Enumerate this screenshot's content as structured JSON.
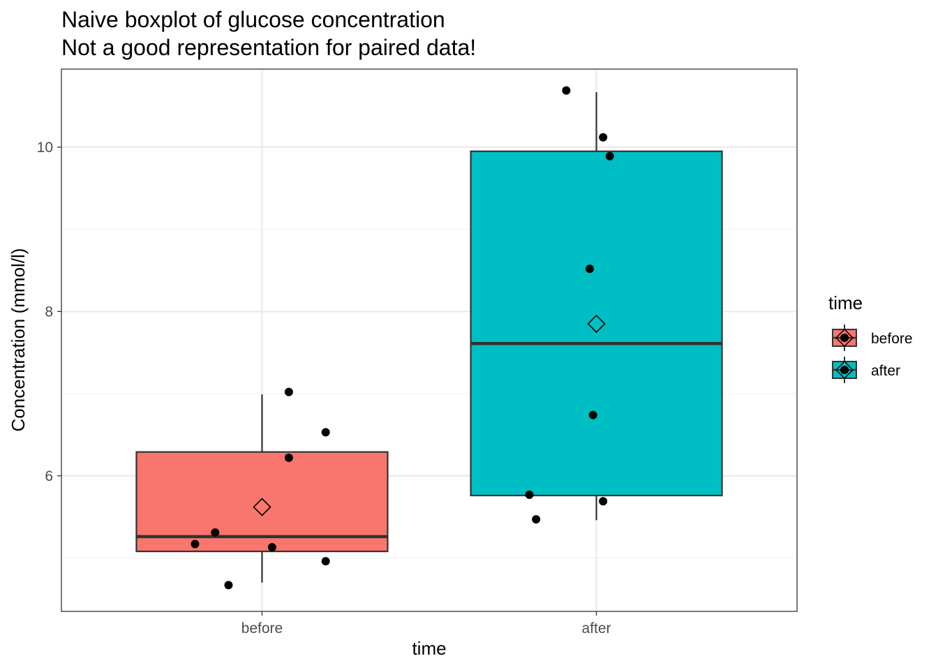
{
  "title_lines": [
    "Naive boxplot of glucose concentration",
    "Not a good representation for paired data!"
  ],
  "chart_data": {
    "type": "boxplot",
    "title": "Naive boxplot of glucose concentration\nNot a good representation for paired data!",
    "xlabel": "time",
    "ylabel": "Concentration (mmol/l)",
    "categories": [
      "before",
      "after"
    ],
    "yticks": [
      6,
      8,
      10
    ],
    "ylim": [
      4.35,
      10.95
    ],
    "grid": true,
    "legend": {
      "title": "time",
      "position": "right",
      "entries": [
        {
          "label": "before",
          "color": "#F8766D"
        },
        {
          "label": "after",
          "color": "#00BFC4"
        }
      ]
    },
    "boxes": [
      {
        "name": "before",
        "color": "#F8766D",
        "whisker_low": 4.7,
        "q1": 5.08,
        "median": 5.26,
        "q3": 6.29,
        "whisker_high": 6.99,
        "mean": 5.62
      },
      {
        "name": "after",
        "color": "#00BFC4",
        "whisker_low": 5.46,
        "q1": 5.76,
        "median": 7.61,
        "q3": 9.95,
        "whisker_high": 10.67,
        "mean": 7.85
      }
    ],
    "points": [
      {
        "group": "before",
        "jitter": -0.1,
        "y": 4.67
      },
      {
        "group": "before",
        "jitter": -0.2,
        "y": 5.17
      },
      {
        "group": "before",
        "jitter": 0.03,
        "y": 5.13
      },
      {
        "group": "before",
        "jitter": -0.14,
        "y": 5.31
      },
      {
        "group": "before",
        "jitter": 0.19,
        "y": 4.96
      },
      {
        "group": "before",
        "jitter": 0.08,
        "y": 6.22
      },
      {
        "group": "before",
        "jitter": 0.19,
        "y": 6.53
      },
      {
        "group": "before",
        "jitter": 0.08,
        "y": 7.02
      },
      {
        "group": "after",
        "jitter": -0.18,
        "y": 5.47
      },
      {
        "group": "after",
        "jitter": -0.2,
        "y": 5.77
      },
      {
        "group": "after",
        "jitter": 0.02,
        "y": 5.69
      },
      {
        "group": "after",
        "jitter": -0.01,
        "y": 6.74
      },
      {
        "group": "after",
        "jitter": -0.02,
        "y": 8.52
      },
      {
        "group": "after",
        "jitter": 0.04,
        "y": 9.89
      },
      {
        "group": "after",
        "jitter": 0.02,
        "y": 10.12
      },
      {
        "group": "after",
        "jitter": -0.09,
        "y": 10.69
      }
    ]
  }
}
